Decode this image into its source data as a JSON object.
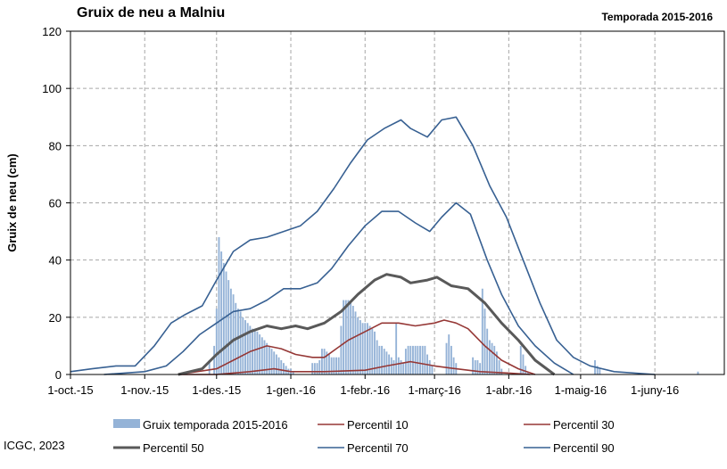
{
  "header": {
    "title": "Gruix de neu a Malniu",
    "subtitle": "Temporada 2015-2016"
  },
  "footer": {
    "credit": "ICGC, 2023"
  },
  "chart_data": {
    "type": "bar",
    "title": "Gruix de neu a Malniu",
    "subtitle": "Temporada 2015-2016",
    "ylabel": "Gruix de neu (cm)",
    "xlabel": "",
    "ylim": [
      0,
      120
    ],
    "yticks": [
      "0",
      "20",
      "40",
      "60",
      "80",
      "100",
      "120"
    ],
    "xlim": [
      "2015-10-01",
      "2016-06-30"
    ],
    "xticks": [
      "1-oct.-15",
      "1-nov.-15",
      "1-des.-15",
      "1-gen.-16",
      "1-febr.-16",
      "1-març-16",
      "1-abr.-16",
      "1-maig-16",
      "1-juny-16"
    ],
    "xtick_dates": [
      "2015-10-01",
      "2015-11-01",
      "2015-12-01",
      "2016-01-01",
      "2016-02-01",
      "2016-03-01",
      "2016-04-01",
      "2016-05-01",
      "2016-06-01"
    ],
    "grid": true,
    "legend_position": "bottom",
    "colors": {
      "bars": "#95b3d7",
      "p10": "#953735",
      "p30": "#953735",
      "p50": "#595959",
      "p70": "#376092",
      "p90": "#376092"
    },
    "bar_series": {
      "name": "Gruix temporada 2015-2016",
      "points": [
        [
          "2015-11-28",
          5
        ],
        [
          "2015-11-30",
          10
        ],
        [
          "2015-12-01",
          23
        ],
        [
          "2015-12-02",
          48
        ],
        [
          "2015-12-03",
          43
        ],
        [
          "2015-12-04",
          39
        ],
        [
          "2015-12-05",
          36
        ],
        [
          "2015-12-06",
          33
        ],
        [
          "2015-12-07",
          30
        ],
        [
          "2015-12-08",
          28
        ],
        [
          "2015-12-09",
          25
        ],
        [
          "2015-12-10",
          23
        ],
        [
          "2015-12-11",
          22
        ],
        [
          "2015-12-12",
          20
        ],
        [
          "2015-12-13",
          19
        ],
        [
          "2015-12-14",
          18
        ],
        [
          "2015-12-15",
          17
        ],
        [
          "2015-12-16",
          16
        ],
        [
          "2015-12-17",
          16
        ],
        [
          "2015-12-18",
          15
        ],
        [
          "2015-12-19",
          14
        ],
        [
          "2015-12-20",
          13
        ],
        [
          "2015-12-21",
          12
        ],
        [
          "2015-12-22",
          11
        ],
        [
          "2015-12-23",
          10
        ],
        [
          "2015-12-24",
          9
        ],
        [
          "2015-12-25",
          8
        ],
        [
          "2015-12-26",
          7
        ],
        [
          "2015-12-27",
          6
        ],
        [
          "2015-12-28",
          5
        ],
        [
          "2015-12-29",
          4
        ],
        [
          "2015-12-30",
          3
        ],
        [
          "2015-12-31",
          2
        ],
        [
          "2016-01-01",
          2
        ],
        [
          "2016-01-02",
          1
        ],
        [
          "2016-01-10",
          4
        ],
        [
          "2016-01-11",
          4
        ],
        [
          "2016-01-12",
          4
        ],
        [
          "2016-01-13",
          5
        ],
        [
          "2016-01-14",
          9
        ],
        [
          "2016-01-15",
          9
        ],
        [
          "2016-01-16",
          8
        ],
        [
          "2016-01-17",
          7
        ],
        [
          "2016-01-18",
          6
        ],
        [
          "2016-01-19",
          6
        ],
        [
          "2016-01-20",
          6
        ],
        [
          "2016-01-21",
          6
        ],
        [
          "2016-01-22",
          17
        ],
        [
          "2016-01-23",
          26
        ],
        [
          "2016-01-24",
          26
        ],
        [
          "2016-01-25",
          26
        ],
        [
          "2016-01-26",
          25
        ],
        [
          "2016-01-27",
          24
        ],
        [
          "2016-01-28",
          22
        ],
        [
          "2016-01-29",
          20
        ],
        [
          "2016-01-30",
          19
        ],
        [
          "2016-01-31",
          18
        ],
        [
          "2016-02-01",
          18
        ],
        [
          "2016-02-02",
          18
        ],
        [
          "2016-02-03",
          17
        ],
        [
          "2016-02-04",
          16
        ],
        [
          "2016-02-05",
          15
        ],
        [
          "2016-02-06",
          12
        ],
        [
          "2016-02-07",
          10
        ],
        [
          "2016-02-08",
          10
        ],
        [
          "2016-02-09",
          9
        ],
        [
          "2016-02-10",
          8
        ],
        [
          "2016-02-11",
          7
        ],
        [
          "2016-02-12",
          6
        ],
        [
          "2016-02-13",
          5
        ],
        [
          "2016-02-14",
          18
        ],
        [
          "2016-02-15",
          6
        ],
        [
          "2016-02-16",
          5
        ],
        [
          "2016-02-17",
          4
        ],
        [
          "2016-02-18",
          9
        ],
        [
          "2016-02-19",
          10
        ],
        [
          "2016-02-20",
          10
        ],
        [
          "2016-02-21",
          10
        ],
        [
          "2016-02-22",
          10
        ],
        [
          "2016-02-23",
          10
        ],
        [
          "2016-02-24",
          10
        ],
        [
          "2016-02-25",
          10
        ],
        [
          "2016-02-26",
          10
        ],
        [
          "2016-02-27",
          7
        ],
        [
          "2016-02-28",
          5
        ],
        [
          "2016-02-29",
          3
        ],
        [
          "2016-03-06",
          11
        ],
        [
          "2016-03-07",
          14
        ],
        [
          "2016-03-08",
          10
        ],
        [
          "2016-03-09",
          6
        ],
        [
          "2016-03-10",
          4
        ],
        [
          "2016-03-17",
          6
        ],
        [
          "2016-03-18",
          5
        ],
        [
          "2016-03-19",
          5
        ],
        [
          "2016-03-20",
          4
        ],
        [
          "2016-03-21",
          30
        ],
        [
          "2016-03-22",
          23
        ],
        [
          "2016-03-23",
          16
        ],
        [
          "2016-03-24",
          12
        ],
        [
          "2016-03-25",
          11
        ],
        [
          "2016-03-26",
          10
        ],
        [
          "2016-03-27",
          8
        ],
        [
          "2016-03-28",
          5
        ],
        [
          "2016-03-29",
          2
        ],
        [
          "2016-04-06",
          10
        ],
        [
          "2016-04-07",
          7
        ],
        [
          "2016-04-08",
          3
        ],
        [
          "2016-04-09",
          1
        ],
        [
          "2016-05-07",
          5
        ],
        [
          "2016-05-08",
          3
        ],
        [
          "2016-05-09",
          2
        ],
        [
          "2016-06-19",
          1
        ]
      ]
    },
    "series": [
      {
        "name": "Percentil 10",
        "points": [
          [
            "2015-11-15",
            0
          ],
          [
            "2015-12-01",
            0
          ],
          [
            "2015-12-15",
            1
          ],
          [
            "2015-12-25",
            2
          ],
          [
            "2016-01-01",
            1
          ],
          [
            "2016-01-15",
            1
          ],
          [
            "2016-02-01",
            1.5
          ],
          [
            "2016-02-10",
            3
          ],
          [
            "2016-02-20",
            4.5
          ],
          [
            "2016-03-01",
            3
          ],
          [
            "2016-03-10",
            2
          ],
          [
            "2016-03-20",
            1
          ],
          [
            "2016-04-01",
            0.5
          ],
          [
            "2016-04-10",
            0
          ]
        ]
      },
      {
        "name": "Percentil 30",
        "points": [
          [
            "2015-11-15",
            0
          ],
          [
            "2015-12-01",
            2
          ],
          [
            "2015-12-08",
            5
          ],
          [
            "2015-12-15",
            8
          ],
          [
            "2015-12-22",
            10
          ],
          [
            "2015-12-28",
            9
          ],
          [
            "2016-01-03",
            7
          ],
          [
            "2016-01-10",
            6
          ],
          [
            "2016-01-15",
            6
          ],
          [
            "2016-01-20",
            9
          ],
          [
            "2016-01-25",
            12
          ],
          [
            "2016-02-01",
            15
          ],
          [
            "2016-02-08",
            18
          ],
          [
            "2016-02-15",
            18
          ],
          [
            "2016-02-22",
            17
          ],
          [
            "2016-03-01",
            18
          ],
          [
            "2016-03-05",
            19
          ],
          [
            "2016-03-10",
            18
          ],
          [
            "2016-03-15",
            16
          ],
          [
            "2016-03-22",
            10
          ],
          [
            "2016-03-29",
            5
          ],
          [
            "2016-04-05",
            2
          ],
          [
            "2016-04-12",
            0
          ]
        ]
      },
      {
        "name": "Percentil 50",
        "points": [
          [
            "2015-11-15",
            0
          ],
          [
            "2015-11-25",
            2
          ],
          [
            "2015-12-01",
            7
          ],
          [
            "2015-12-08",
            12
          ],
          [
            "2015-12-15",
            15
          ],
          [
            "2015-12-22",
            17
          ],
          [
            "2015-12-28",
            16
          ],
          [
            "2016-01-03",
            17
          ],
          [
            "2016-01-08",
            16
          ],
          [
            "2016-01-15",
            18
          ],
          [
            "2016-01-22",
            22
          ],
          [
            "2016-01-29",
            28
          ],
          [
            "2016-02-05",
            33
          ],
          [
            "2016-02-10",
            35
          ],
          [
            "2016-02-16",
            34
          ],
          [
            "2016-02-20",
            32
          ],
          [
            "2016-02-27",
            33
          ],
          [
            "2016-03-02",
            34
          ],
          [
            "2016-03-08",
            31
          ],
          [
            "2016-03-15",
            30
          ],
          [
            "2016-03-22",
            25
          ],
          [
            "2016-03-29",
            18
          ],
          [
            "2016-04-05",
            12
          ],
          [
            "2016-04-12",
            5
          ],
          [
            "2016-04-20",
            0
          ]
        ]
      },
      {
        "name": "Percentil 70",
        "points": [
          [
            "2015-10-15",
            0
          ],
          [
            "2015-11-01",
            1
          ],
          [
            "2015-11-10",
            3
          ],
          [
            "2015-11-17",
            8
          ],
          [
            "2015-11-24",
            14
          ],
          [
            "2015-12-01",
            18
          ],
          [
            "2015-12-08",
            22
          ],
          [
            "2015-12-15",
            23
          ],
          [
            "2015-12-22",
            26
          ],
          [
            "2015-12-29",
            30
          ],
          [
            "2016-01-05",
            30
          ],
          [
            "2016-01-12",
            32
          ],
          [
            "2016-01-18",
            37
          ],
          [
            "2016-01-25",
            45
          ],
          [
            "2016-02-01",
            52
          ],
          [
            "2016-02-08",
            57
          ],
          [
            "2016-02-15",
            57
          ],
          [
            "2016-02-22",
            53
          ],
          [
            "2016-02-28",
            50
          ],
          [
            "2016-03-04",
            55
          ],
          [
            "2016-03-10",
            60
          ],
          [
            "2016-03-16",
            56
          ],
          [
            "2016-03-23",
            40
          ],
          [
            "2016-03-29",
            28
          ],
          [
            "2016-04-05",
            17
          ],
          [
            "2016-04-12",
            10
          ],
          [
            "2016-04-20",
            4
          ],
          [
            "2016-04-28",
            0
          ]
        ]
      },
      {
        "name": "Percentil 90",
        "points": [
          [
            "2015-10-01",
            1
          ],
          [
            "2015-10-10",
            2
          ],
          [
            "2015-10-20",
            3
          ],
          [
            "2015-10-28",
            3
          ],
          [
            "2015-11-05",
            10
          ],
          [
            "2015-11-12",
            18
          ],
          [
            "2015-11-18",
            21
          ],
          [
            "2015-11-25",
            24
          ],
          [
            "2015-12-01",
            33
          ],
          [
            "2015-12-08",
            43
          ],
          [
            "2015-12-15",
            47
          ],
          [
            "2015-12-22",
            48
          ],
          [
            "2015-12-29",
            50
          ],
          [
            "2016-01-05",
            52
          ],
          [
            "2016-01-12",
            57
          ],
          [
            "2016-01-19",
            65
          ],
          [
            "2016-01-26",
            74
          ],
          [
            "2016-02-02",
            82
          ],
          [
            "2016-02-09",
            86
          ],
          [
            "2016-02-16",
            89
          ],
          [
            "2016-02-20",
            86
          ],
          [
            "2016-02-27",
            83
          ],
          [
            "2016-03-04",
            89
          ],
          [
            "2016-03-10",
            90
          ],
          [
            "2016-03-17",
            80
          ],
          [
            "2016-03-24",
            66
          ],
          [
            "2016-03-31",
            55
          ],
          [
            "2016-04-07",
            40
          ],
          [
            "2016-04-14",
            25
          ],
          [
            "2016-04-21",
            12
          ],
          [
            "2016-04-28",
            6
          ],
          [
            "2016-05-05",
            3
          ],
          [
            "2016-05-15",
            1
          ],
          [
            "2016-06-01",
            0
          ]
        ]
      }
    ],
    "legend": [
      {
        "label": "Gruix temporada 2015-2016",
        "kind": "bar"
      },
      {
        "label": "Percentil 10",
        "kind": "line",
        "key": "p10"
      },
      {
        "label": "Percentil 30",
        "kind": "line",
        "key": "p30"
      },
      {
        "label": "Percentil 50",
        "kind": "line",
        "key": "p50"
      },
      {
        "label": "Percentil 70",
        "kind": "line",
        "key": "p70"
      },
      {
        "label": "Percentil 90",
        "kind": "line",
        "key": "p90"
      }
    ]
  }
}
